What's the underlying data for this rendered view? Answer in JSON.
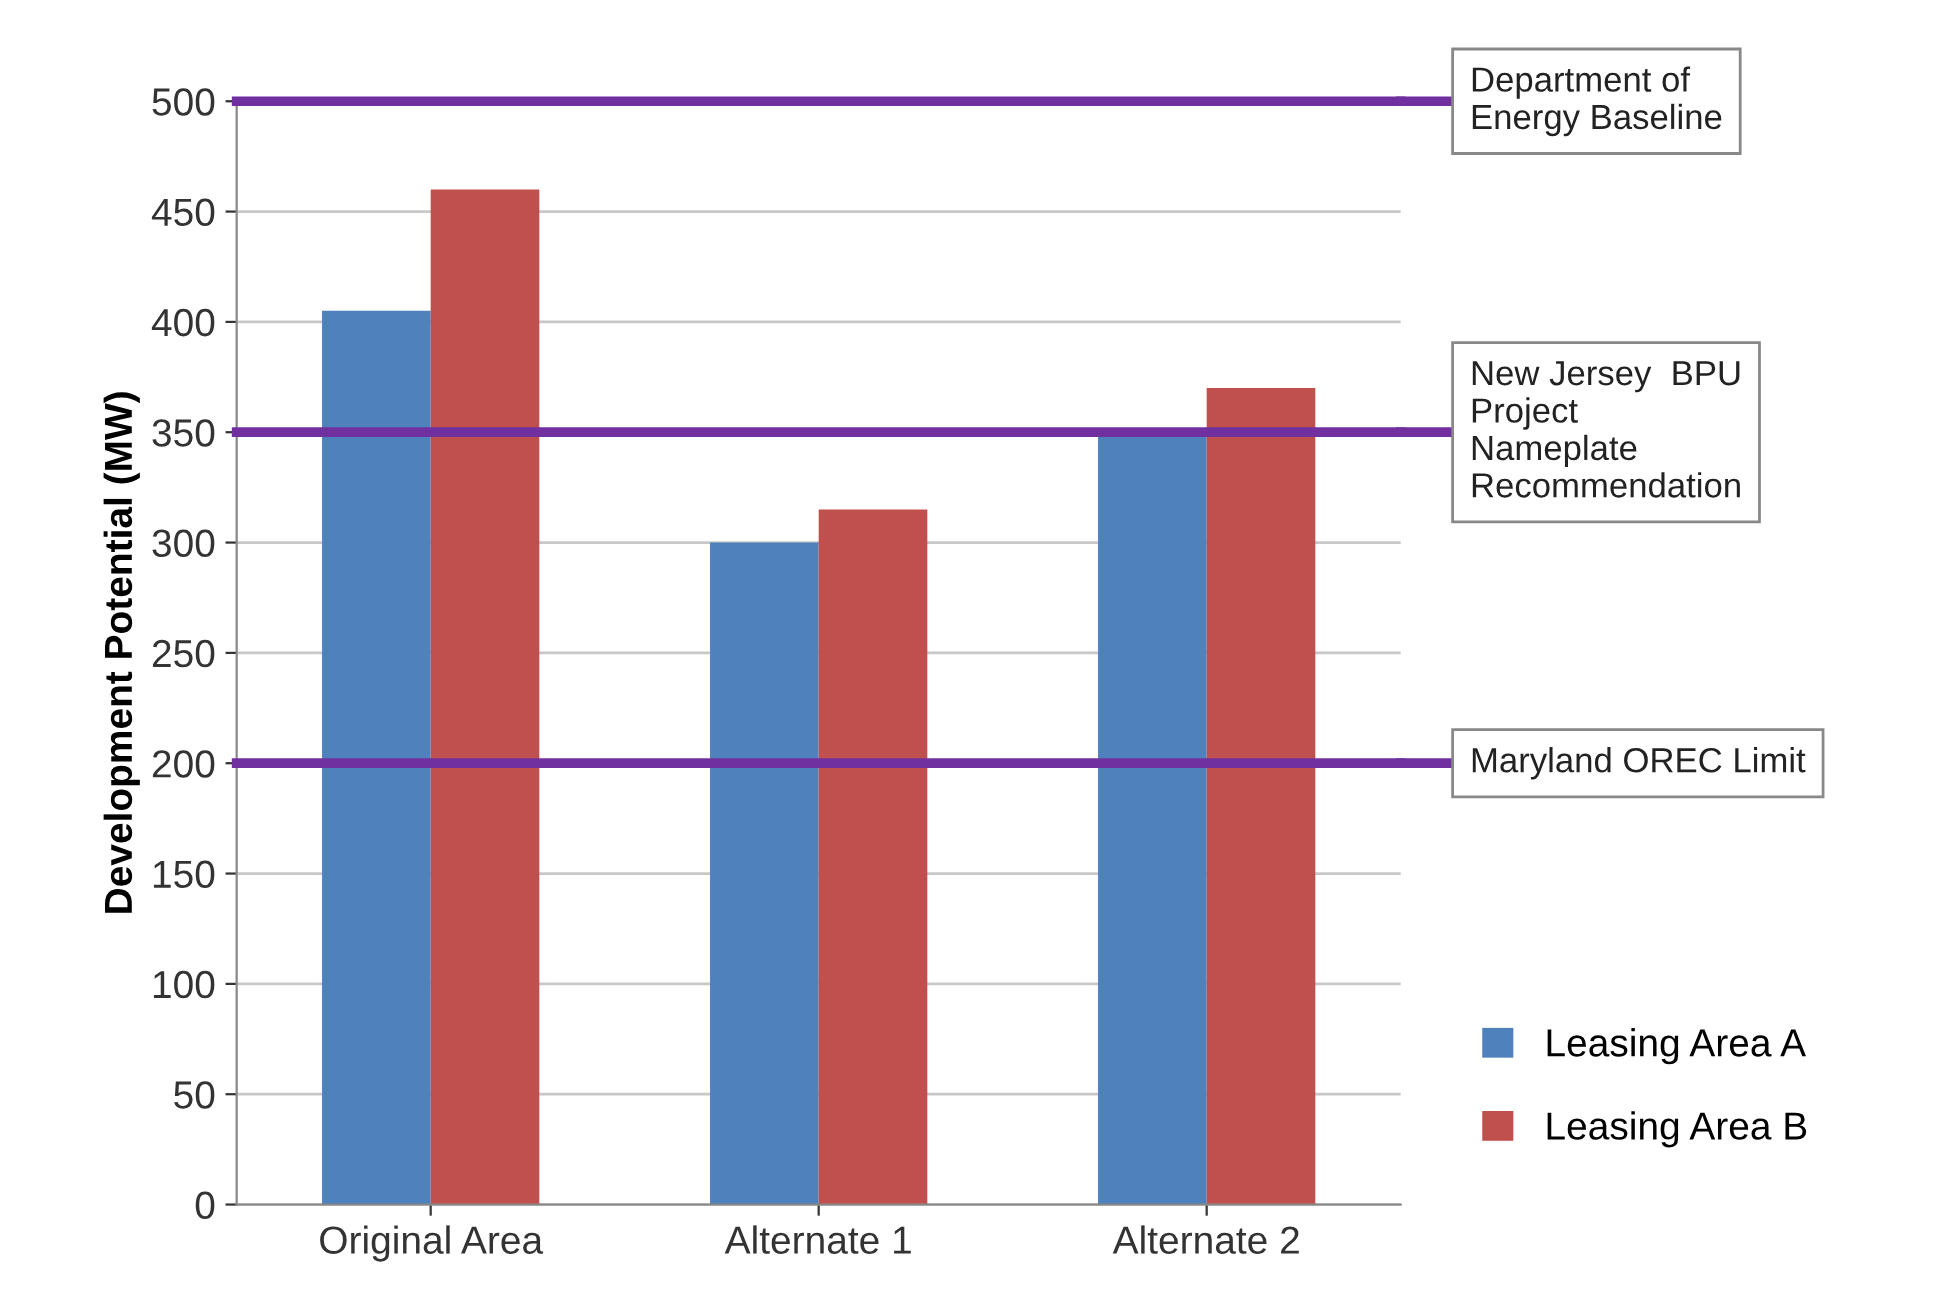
{
  "chart_data": {
    "type": "bar",
    "ylabel": "Development Potential (MW)",
    "categories": [
      "Original Area",
      "Alternate 1",
      "Alternate 2"
    ],
    "series": [
      {
        "name": "Leasing Area A",
        "color": "#4f81bd",
        "values": [
          405,
          300,
          350
        ]
      },
      {
        "name": "Leasing Area B",
        "color": "#c0504d",
        "values": [
          460,
          315,
          370
        ]
      }
    ],
    "ylim": [
      0,
      500
    ],
    "yticks": [
      0,
      50,
      100,
      150,
      200,
      250,
      300,
      350,
      400,
      450,
      500
    ],
    "grid": "y",
    "legend": "bottom right",
    "ref_lines": [
      {
        "axis": "y",
        "value": 500,
        "label": "Department of\nEnergy Baseline",
        "color": "#7030a0"
      },
      {
        "axis": "y",
        "value": 350,
        "label": "New Jersey  BPU\nProject\nNameplate\nRecommendation",
        "color": "#7030a0"
      },
      {
        "axis": "y",
        "value": 200,
        "label": "Maryland OREC Limit",
        "color": "#7030a0"
      }
    ]
  }
}
